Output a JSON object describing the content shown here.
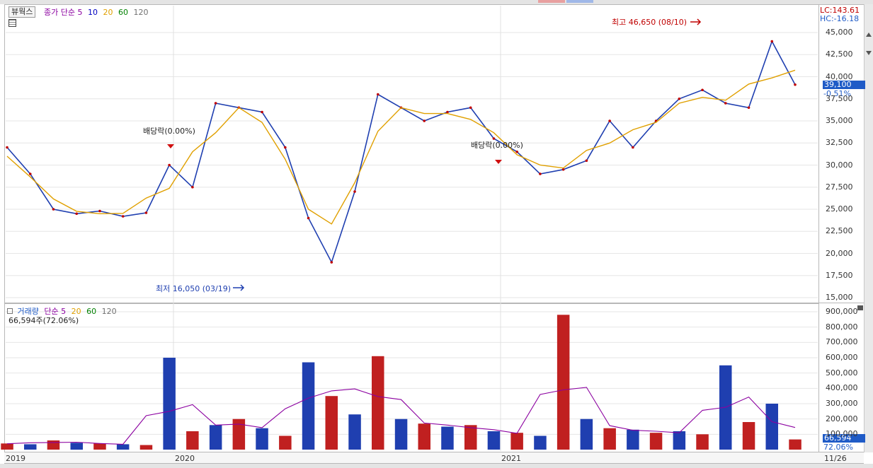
{
  "price_panel": {
    "header": {
      "btn": "뷰웍스",
      "ma_label": "종가 단순",
      "ma": [
        "5",
        "10",
        "20",
        "60",
        "120"
      ],
      "ma_colors": [
        "#8b00a0",
        "#0000c0",
        "#e0a000",
        "#008000",
        "#707070"
      ]
    },
    "lc": "LC:143.61",
    "hc": "HC:-16.18",
    "current_price": "39,100",
    "current_change": "-0.51%",
    "high_label": "최고 46,650 (08/10)",
    "low_label": "최저 16,050 (03/19)",
    "div_labels": [
      "배당락(0.00%)",
      "배당락(0.00%)"
    ],
    "y_ticks": [
      "45,000",
      "42,500",
      "40,000",
      "37,500",
      "35,000",
      "32,500",
      "30,000",
      "27,500",
      "25,000",
      "22,500",
      "20,000",
      "17,500",
      "15,000"
    ]
  },
  "volume_panel": {
    "header": {
      "label": "거래량",
      "ma_label": "단순",
      "ma": [
        "5",
        "20",
        "60",
        "120"
      ]
    },
    "current_volume": "66,594주(72.06%)",
    "current_box": "66,594",
    "current_pct": "72.06%",
    "y_ticks": [
      "900,000",
      "800,000",
      "700,000",
      "600,000",
      "500,000",
      "400,000",
      "300,000",
      "200,000",
      "100,000"
    ]
  },
  "x_axis": {
    "labels": [
      "2019",
      "2020",
      "2021",
      "11/26"
    ]
  },
  "chart_data": [
    {
      "type": "line",
      "title": "뷰웍스",
      "xlabel": "",
      "ylabel": "",
      "ylim": [
        15000,
        46650
      ],
      "x": [
        "2019-01",
        "2019-02",
        "2019-03",
        "2019-04",
        "2019-05",
        "2019-06",
        "2019-07",
        "2019-08",
        "2019-09",
        "2019-10",
        "2019-11",
        "2019-12",
        "2020-01",
        "2020-02",
        "2020-03",
        "2020-04",
        "2020-05",
        "2020-06",
        "2020-07",
        "2020-08",
        "2020-09",
        "2020-10",
        "2020-11",
        "2020-12",
        "2021-01",
        "2021-02",
        "2021-03",
        "2021-04",
        "2021-05",
        "2021-06",
        "2021-07",
        "2021-08",
        "2021-09",
        "2021-10",
        "2021-11"
      ],
      "series": [
        {
          "name": "종가",
          "values": [
            32000,
            29000,
            25000,
            24500,
            24800,
            24200,
            24600,
            30000,
            27500,
            37000,
            36500,
            36000,
            32000,
            24000,
            19000,
            27000,
            38000,
            36500,
            35000,
            36000,
            36500,
            33000,
            31500,
            29000,
            29500,
            30500,
            35000,
            32000,
            35000,
            37500,
            38500,
            37000,
            36500,
            44000,
            39100
          ]
        }
      ],
      "annotations": [
        "최고 46,650 (08/10)",
        "최저 16,050 (03/19)",
        "배당락(0.00%)",
        "배당락(0.00%)"
      ]
    },
    {
      "type": "bar",
      "title": "거래량",
      "xlabel": "",
      "ylabel": "",
      "ylim": [
        0,
        900000
      ],
      "categories": [
        "2019-01",
        "2019-02",
        "2019-03",
        "2019-04",
        "2019-05",
        "2019-06",
        "2019-07",
        "2019-08",
        "2019-09",
        "2019-10",
        "2019-11",
        "2019-12",
        "2020-01",
        "2020-02",
        "2020-03",
        "2020-04",
        "2020-05",
        "2020-06",
        "2020-07",
        "2020-08",
        "2020-09",
        "2020-10",
        "2020-11",
        "2020-12",
        "2021-01",
        "2021-02",
        "2021-03",
        "2021-04",
        "2021-05",
        "2021-06",
        "2021-07",
        "2021-08",
        "2021-09",
        "2021-10",
        "2021-11"
      ],
      "series": [
        {
          "name": "거래량",
          "values": [
            40000,
            35000,
            60000,
            45000,
            40000,
            35000,
            30000,
            600000,
            120000,
            160000,
            200000,
            140000,
            90000,
            570000,
            350000,
            230000,
            610000,
            200000,
            170000,
            150000,
            160000,
            120000,
            110000,
            90000,
            880000,
            200000,
            140000,
            130000,
            110000,
            120000,
            100000,
            550000,
            180000,
            300000,
            66594
          ]
        }
      ]
    }
  ]
}
